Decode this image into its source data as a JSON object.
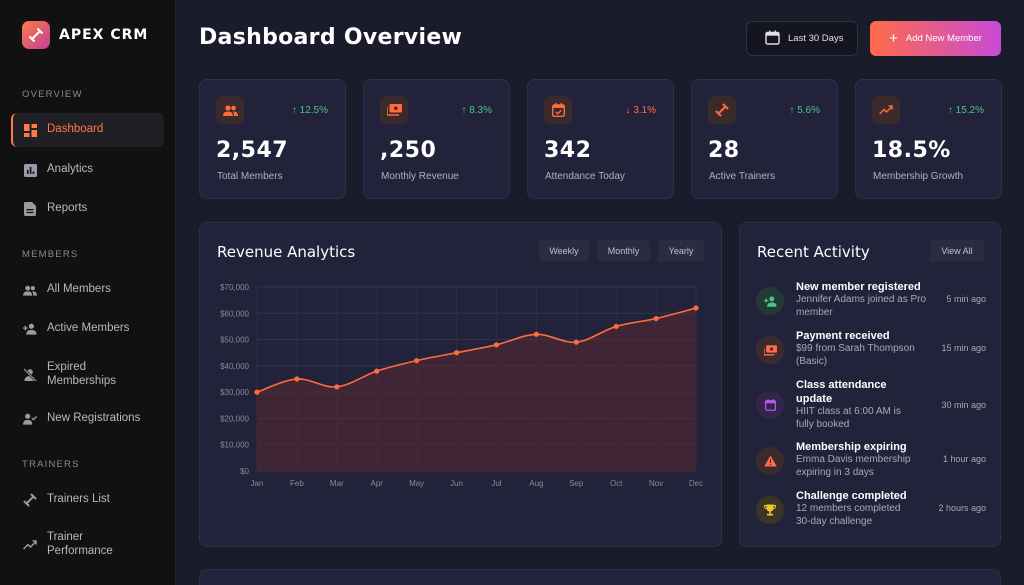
{
  "app": {
    "name": "APEX CRM"
  },
  "sidebar": {
    "sections": [
      {
        "title": "OVERVIEW"
      },
      {
        "title": "MEMBERS"
      },
      {
        "title": "TRAINERS"
      }
    ],
    "items": [
      {
        "label": "Dashboard",
        "icon": "dashboard-icon",
        "active": true
      },
      {
        "label": "Analytics",
        "icon": "analytics-icon"
      },
      {
        "label": "Reports",
        "icon": "reports-icon"
      },
      {
        "label": "All Members",
        "icon": "people-icon"
      },
      {
        "label": "Active Members",
        "icon": "person-add-icon"
      },
      {
        "label": "Expired Memberships",
        "icon": "person-off-icon"
      },
      {
        "label": "New Registrations",
        "icon": "person-check-icon"
      },
      {
        "label": "Trainers List",
        "icon": "dumbbell-icon"
      },
      {
        "label": "Trainer Performance",
        "icon": "trending-up-icon"
      }
    ]
  },
  "header": {
    "title": "Dashboard Overview",
    "range_label": "Last 30 Days",
    "add_label": "Add New Member"
  },
  "stats": [
    {
      "value": "2,547",
      "label": "Total Members",
      "trend": "12.5%",
      "direction": "up",
      "icon": "people-icon"
    },
    {
      "value": ",250",
      "label": "Monthly Revenue",
      "trend": "8.3%",
      "direction": "up",
      "icon": "payments-icon"
    },
    {
      "value": "342",
      "label": "Attendance Today",
      "trend": "3.1%",
      "direction": "down",
      "icon": "calendar-check-icon"
    },
    {
      "value": "28",
      "label": "Active Trainers",
      "trend": "5.6%",
      "direction": "up",
      "icon": "dumbbell-icon"
    },
    {
      "value": "18.5%",
      "label": "Membership Growth",
      "trend": "15.2%",
      "direction": "up",
      "icon": "trending-up-icon"
    }
  ],
  "revenue": {
    "title": "Revenue Analytics",
    "filters": [
      "Weekly",
      "Monthly",
      "Yearly"
    ]
  },
  "chart_data": {
    "type": "area",
    "categories": [
      "Jan",
      "Feb",
      "Mar",
      "Apr",
      "May",
      "Jun",
      "Jul",
      "Aug",
      "Sep",
      "Oct",
      "Nov",
      "Dec"
    ],
    "values": [
      30000,
      35000,
      32000,
      38000,
      42000,
      45000,
      48000,
      52000,
      49000,
      55000,
      58000,
      62000
    ],
    "ylim": [
      0,
      70000
    ],
    "yticks": [
      "$0",
      "$10,000",
      "$20,000",
      "$30,000",
      "$40,000",
      "$50,000",
      "$60,000",
      "$70,000"
    ],
    "color": "#ff6b3d",
    "grid": true
  },
  "activity": {
    "title": "Recent Activity",
    "view_all": "View All",
    "items": [
      {
        "title": "New member registered",
        "desc": "Jennifer Adams joined as Pro member",
        "time": "5 min ago",
        "icon": "person-add-icon",
        "color": "#4cc38a",
        "bg": "#223a33"
      },
      {
        "title": "Payment received",
        "desc": "$99 from Sarah Thompson (Basic)",
        "time": "15 min ago",
        "icon": "payments-icon",
        "color": "#ff6b4a",
        "bg": "#3d2a2e"
      },
      {
        "title": "Class attendance update",
        "desc": "HIIT class at 6:00 AM is fully booked",
        "time": "30 min ago",
        "icon": "calendar-check-icon",
        "color": "#b45cf0",
        "bg": "#33264a"
      },
      {
        "title": "Membership expiring",
        "desc": "Emma Davis membership expiring in 3 days",
        "time": "1 hour ago",
        "icon": "warning-icon",
        "color": "#ff6b4a",
        "bg": "#3d2a2e"
      },
      {
        "title": "Challenge completed",
        "desc": "12 members completed 30-day challenge",
        "time": "2 hours ago",
        "icon": "trophy-icon",
        "color": "#f2c230",
        "bg": "#3a3626"
      }
    ]
  }
}
